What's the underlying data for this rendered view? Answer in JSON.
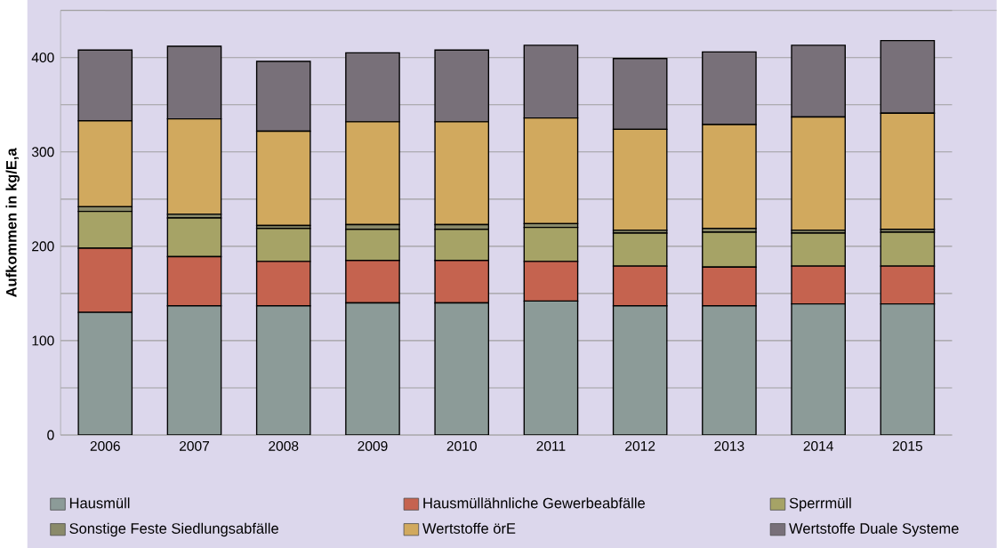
{
  "chart_data": {
    "type": "bar",
    "stacked": true,
    "ylabel": "Aufkommen in kg/E,a",
    "categories": [
      "2006",
      "2007",
      "2008",
      "2009",
      "2010",
      "2011",
      "2012",
      "2013",
      "2014",
      "2015"
    ],
    "series": [
      {
        "name": "Hausmüll",
        "color": "#8c9b98",
        "values": [
          130,
          137,
          137,
          140,
          140,
          142,
          137,
          137,
          139,
          139
        ]
      },
      {
        "name": "Hausmüllähnliche Gewerbeabfälle",
        "color": "#c5634f",
        "values": [
          68,
          52,
          47,
          45,
          45,
          42,
          42,
          41,
          40,
          40
        ]
      },
      {
        "name": "Sperrmüll",
        "color": "#a6a366",
        "values": [
          39,
          41,
          35,
          33,
          33,
          36,
          35,
          37,
          35,
          36
        ]
      },
      {
        "name": "Sonstige Feste Siedlungsabfälle",
        "color": "#8a8a6a",
        "values": [
          5,
          4,
          3,
          5,
          5,
          4,
          3,
          4,
          3,
          3
        ]
      },
      {
        "name": "Wertstoffe örE",
        "color": "#d1a95e",
        "values": [
          91,
          101,
          100,
          109,
          109,
          112,
          107,
          110,
          120,
          123
        ]
      },
      {
        "name": "Wertstoffe Duale Systeme",
        "color": "#787079",
        "values": [
          75,
          77,
          74,
          73,
          76,
          77,
          75,
          77,
          76,
          77
        ]
      }
    ],
    "ylim": [
      0,
      450
    ],
    "yticks": [
      0,
      {
        "value": 50,
        "label": null
      },
      100,
      {
        "value": 150,
        "label": null
      },
      200,
      {
        "value": 250,
        "label": null
      },
      300,
      {
        "value": 350,
        "label": null
      },
      400,
      {
        "value": 450,
        "label": null
      }
    ],
    "grid": "y",
    "legend": "bottom"
  }
}
